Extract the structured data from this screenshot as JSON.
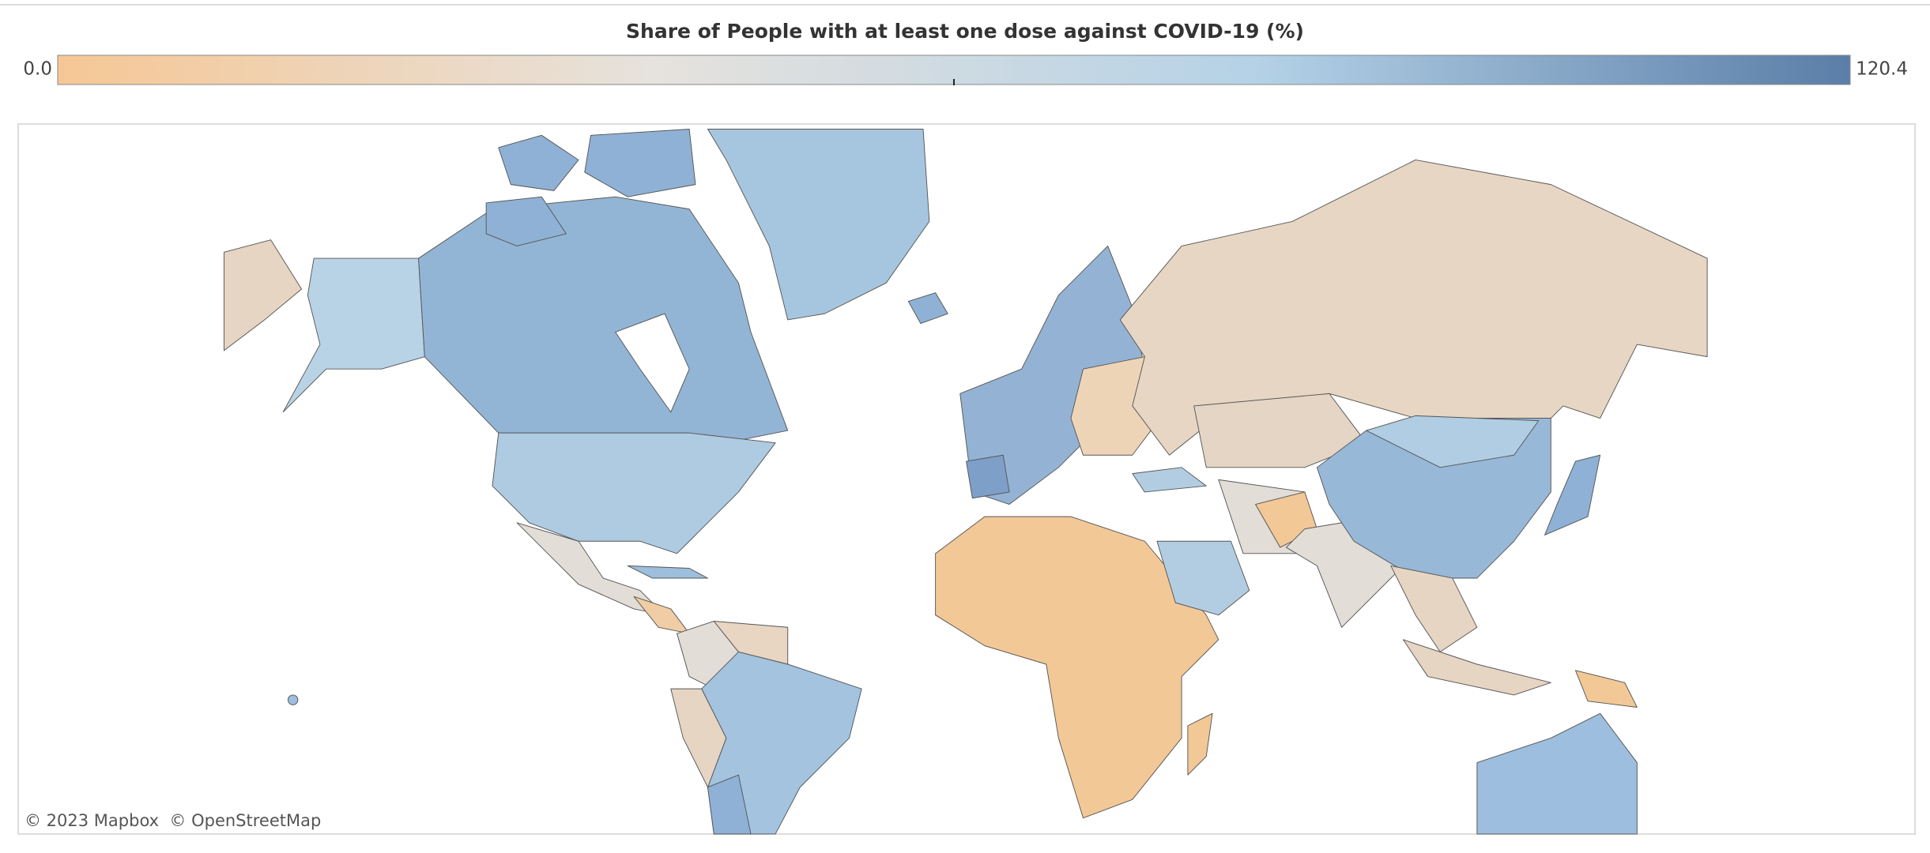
{
  "chart_data": {
    "type": "choropleth-map",
    "title": "Share of People with at least one dose against COVID-19 (%)",
    "legend": {
      "min": {
        "value": 0,
        "label": "0.0"
      },
      "max": 120.4,
      "colors": [
        "#f6c795",
        "#e6e2dd",
        "#b5d2e7",
        "#5a7ea8"
      ]
    },
    "attribution": "© 2023 Mapbox  © OpenStreetMap"
  }
}
